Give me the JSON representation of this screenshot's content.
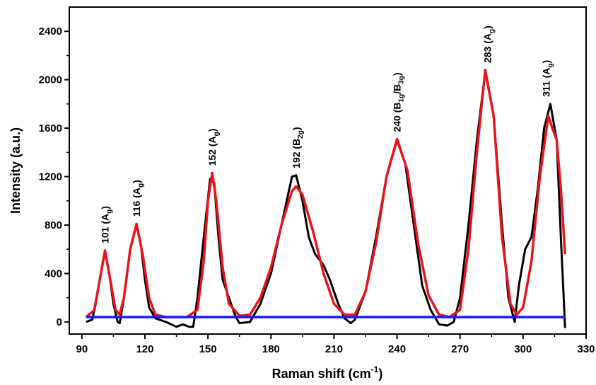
{
  "chart_data": {
    "type": "line",
    "x_label_parts": [
      "Raman shift (cm",
      "-1",
      ")"
    ],
    "y_label": "Intensity (a.u.)",
    "xlim": [
      84,
      330
    ],
    "ylim": [
      -100,
      2600
    ],
    "xticks": [
      90,
      120,
      150,
      180,
      210,
      240,
      270,
      300,
      330
    ],
    "yticks": [
      0,
      400,
      800,
      1200,
      1600,
      2000,
      2400
    ],
    "series": [
      {
        "color": "#000000",
        "x": [
          92,
          95,
          98,
          101,
          103,
          105,
          107,
          108,
          110,
          113,
          116,
          118,
          120,
          122,
          125,
          130,
          135,
          138,
          141,
          143,
          145,
          148,
          151,
          153,
          155,
          157,
          160,
          163,
          165,
          170,
          175,
          180,
          185,
          190,
          192,
          195,
          198,
          201,
          205,
          208,
          212,
          215,
          218,
          220,
          225,
          230,
          235,
          240,
          244,
          248,
          252,
          256,
          260,
          264,
          267,
          270,
          274,
          278,
          282,
          286,
          290,
          293,
          296,
          298,
          301,
          304,
          307,
          310,
          313,
          316,
          318,
          320
        ],
        "values": [
          0,
          20,
          300,
          580,
          400,
          150,
          0,
          -10,
          200,
          600,
          800,
          650,
          350,
          120,
          30,
          0,
          -40,
          -20,
          -40,
          -40,
          200,
          700,
          1180,
          1150,
          700,
          350,
          200,
          50,
          -10,
          0,
          150,
          400,
          800,
          1200,
          1210,
          1000,
          700,
          560,
          470,
          350,
          150,
          30,
          -10,
          20,
          250,
          700,
          1200,
          1500,
          1300,
          800,
          300,
          100,
          -20,
          -30,
          0,
          200,
          800,
          1500,
          2070,
          1700,
          800,
          200,
          0,
          300,
          600,
          700,
          1100,
          1600,
          1800,
          1500,
          700,
          -50
        ]
      },
      {
        "color": "#e8141c",
        "x": [
          92,
          96,
          98,
          101,
          104,
          106,
          108,
          110,
          113,
          116,
          119,
          122,
          125,
          130,
          140,
          145,
          148,
          150,
          152,
          154,
          157,
          160,
          165,
          170,
          175,
          180,
          185,
          190,
          192,
          195,
          200,
          205,
          210,
          215,
          220,
          225,
          230,
          235,
          240,
          245,
          250,
          255,
          260,
          265,
          270,
          274,
          278,
          282,
          286,
          290,
          294,
          297,
          300,
          304,
          308,
          312,
          316,
          318,
          320
        ],
        "values": [
          40,
          100,
          300,
          590,
          300,
          100,
          60,
          200,
          600,
          810,
          550,
          200,
          60,
          40,
          40,
          100,
          500,
          1000,
          1230,
          1000,
          450,
          150,
          50,
          60,
          200,
          450,
          800,
          1080,
          1120,
          1050,
          750,
          400,
          150,
          60,
          60,
          250,
          650,
          1200,
          1510,
          1250,
          650,
          220,
          60,
          40,
          100,
          600,
          1400,
          2080,
          1700,
          700,
          150,
          60,
          120,
          500,
          1200,
          1700,
          1500,
          1100,
          560
        ]
      },
      {
        "color": "#1a1aff",
        "x": [
          92,
          320
        ],
        "values": [
          40,
          40
        ]
      }
    ],
    "annotations": [
      [
        "101 (A",
        "g",
        ")"
      ],
      [
        "116 (A",
        "g",
        ")"
      ],
      [
        "152 (A",
        "g",
        ")"
      ],
      [
        "192 (B",
        "2g",
        ")"
      ],
      [
        "240 (B",
        "1g",
        "/B",
        "3g",
        ")"
      ],
      [
        "283 (A",
        "g",
        ")"
      ],
      [
        "311 (A",
        "g",
        ")"
      ]
    ]
  }
}
